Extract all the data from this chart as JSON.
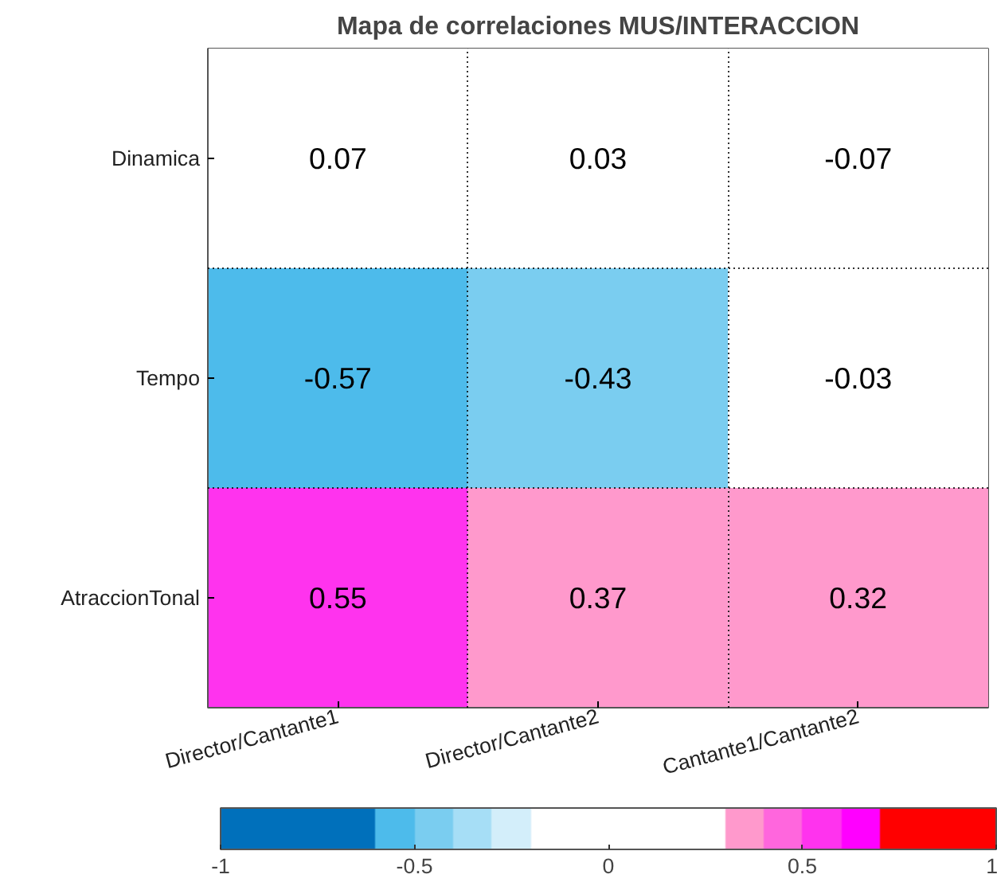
{
  "chart_data": {
    "type": "heatmap",
    "title": "Mapa de correlaciones MUS/INTERACCION",
    "categories": [
      "Director/Cantante1",
      "Director/Cantante2",
      "Cantante1/Cantante2"
    ],
    "y_categories": [
      "Dinamica",
      "Tempo",
      "AtraccionTonal"
    ],
    "cells": [
      [
        0.07,
        0.03,
        -0.07
      ],
      [
        -0.57,
        -0.43,
        -0.03
      ],
      [
        0.55,
        0.37,
        0.32
      ]
    ],
    "clim": [
      -1,
      1
    ],
    "cticks": [
      -1,
      -0.5,
      0,
      0.5,
      1
    ],
    "data_labels": true,
    "grid": true
  }
}
